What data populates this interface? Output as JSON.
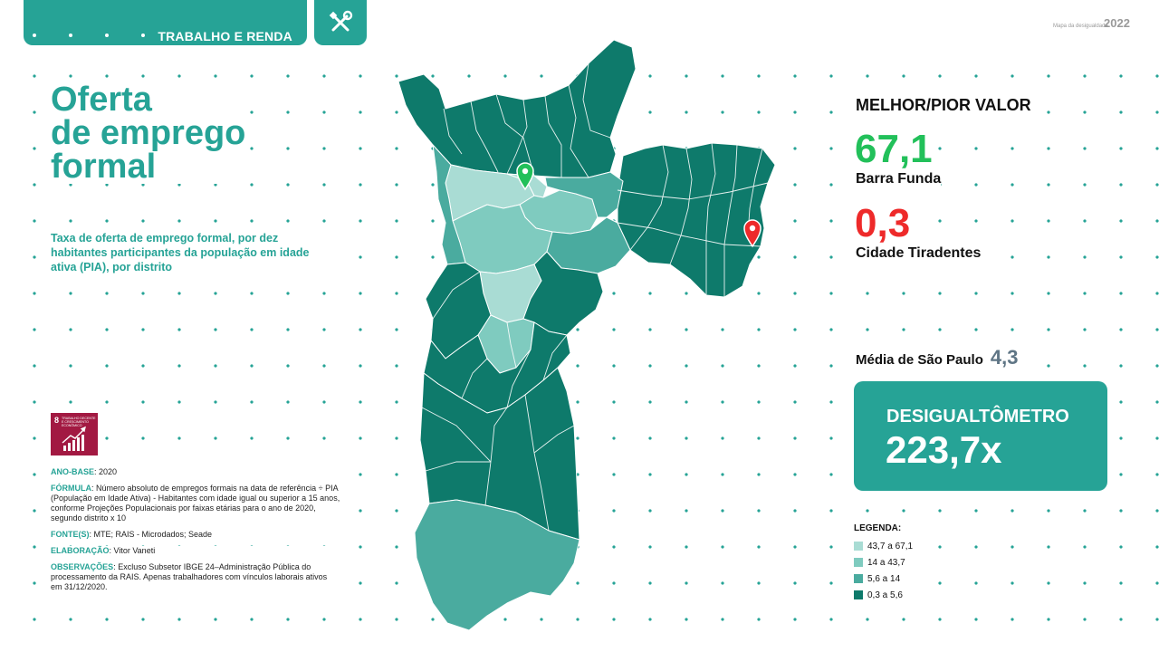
{
  "header": {
    "section_label": "TRABALHO E RENDA",
    "tool_icon": "tools-icon",
    "brand_caption": "Mapa da desigualdade",
    "brand_year": "2022"
  },
  "main": {
    "title": "Oferta\nde emprego\nformal",
    "subtitle": "Taxa de oferta de emprego formal, por dez habitantes participantes da população em idade ativa (PIA), por distrito"
  },
  "sdg": {
    "number": "8",
    "text": "TRABALHO DECENTE E CRESCIMENTO ECONÔMICO",
    "color": "#a21942"
  },
  "meta": {
    "ano_base_key": "ANO-BASE",
    "ano_base_val": ": 2020",
    "formula_key": "FÓRMULA",
    "formula_val": ": Número absoluto de empregos formais na data de referência ÷ PIA (População em Idade Ativa) - Habitantes com idade igual ou superior a 15 anos, conforme Projeções Populacionais por faixas etárias para o ano de 2020, segundo distrito x 10",
    "fontes_key": "FONTE(S)",
    "fontes_val": ": MTE; RAIS - Microdados; Seade",
    "elab_key": "ELABORAÇÃO",
    "elab_val": ": Vitor Vaneti",
    "obs_key": "OBSERVAÇÕES",
    "obs_val": ": Excluso Subsetor IBGE 24–Administração Pública do processamento da RAIS. Apenas trabalhadores com vínculos laborais ativos em 31/12/2020."
  },
  "stats": {
    "heading": "MELHOR/PIOR VALOR",
    "best_value": "67,1",
    "best_name": "Barra Funda",
    "best_color": "#22c05a",
    "worst_value": "0,3",
    "worst_name": "Cidade Tiradentes",
    "worst_color": "#ee2a2a",
    "average_label": "Média de São Paulo",
    "average_value": "4,3",
    "desigualtometro_label": "DESIGUALTÔMETRO",
    "desigualtometro_value": "223,7x"
  },
  "legend": {
    "title": "LEGENDA:",
    "items": [
      {
        "label": "43,7 a 67,1",
        "color": "#a9dcd4"
      },
      {
        "label": "14 a 43,7",
        "color": "#7fcbbf"
      },
      {
        "label": "5,6 a 14",
        "color": "#4aab9f"
      },
      {
        "label": "0,3 a 5,6",
        "color": "#0e7a6b"
      }
    ]
  },
  "colors": {
    "accent": "#26a396",
    "map_dark": "#0e7a6b",
    "map_mid": "#4aab9f",
    "map_light": "#7fcbbf",
    "map_lightest": "#a9dcd4"
  }
}
